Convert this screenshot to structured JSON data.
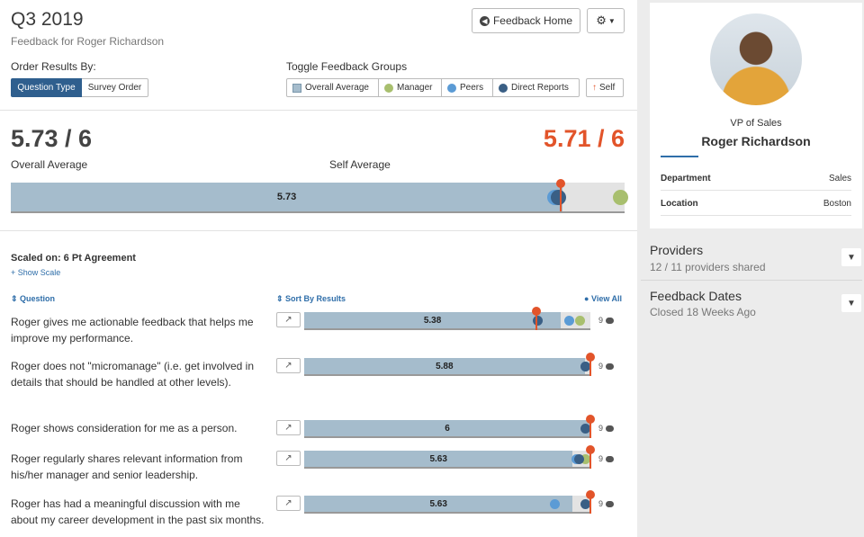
{
  "header": {
    "title": "Q3 2019",
    "subtitle": "Feedback for Roger Richardson",
    "home_label": "Feedback Home",
    "gear_icon": "gear-icon"
  },
  "order": {
    "label": "Order Results By:",
    "options": [
      "Question Type",
      "Survey Order"
    ],
    "selected": "Question Type"
  },
  "groups": {
    "label": "Toggle Feedback Groups",
    "items": [
      "Overall Average",
      "Manager",
      "Peers",
      "Direct Reports",
      "Self"
    ],
    "colors": {
      "overall": "#a5bccc",
      "manager": "#a8bf6e",
      "peers": "#5b9bd5",
      "direct": "#3a5f85",
      "self": "#e2542a"
    }
  },
  "summary": {
    "overall_score": "5.73 / 6",
    "overall_label": "Overall Average",
    "self_score": "5.71 / 6",
    "self_label": "Self Average",
    "bar_value_text": "5.73",
    "overall_value": 5.73,
    "self_value": 5.71,
    "max": 6,
    "peers_value": 5.65,
    "direct_value": 5.69,
    "manager_value": 5.93
  },
  "scale": {
    "scaled_on": "Scaled on: 6 Pt Agreement",
    "show_scale": "+ Show Scale"
  },
  "columns": {
    "question": "Question",
    "sort": "Sort By Results",
    "view_all": "View All"
  },
  "questions": [
    {
      "text": "Roger gives me actionable feedback that helps me improve my performance.",
      "value_text": "5.38",
      "value": 5.38,
      "self": 4.86,
      "direct": 4.89,
      "peers": 5.55,
      "manager": 5.78,
      "comments": "9"
    },
    {
      "text": "Roger does not \"micromanage\" (i.e. get involved in details that should be handled at other levels).",
      "value_text": "5.88",
      "value": 5.88,
      "self": 6,
      "direct": 5.97,
      "peers": 5.92,
      "comments": "9"
    },
    {
      "text": "Roger shows consideration for me as a person.",
      "value_text": "6",
      "value": 6,
      "self": 6,
      "direct": 5.97,
      "comments": "9"
    },
    {
      "text": "Roger regularly shares relevant information from his/her manager and senior leadership.",
      "value_text": "5.63",
      "value": 5.63,
      "self": 6,
      "direct": 5.77,
      "peers": 5.7,
      "manager": 5.91,
      "comments": "9"
    },
    {
      "text": "Roger has had a meaningful discussion with me about my career development in the past six months.",
      "value_text": "5.63",
      "value": 5.63,
      "self": 6,
      "direct": 5.97,
      "peers": 5.26,
      "comments": "9"
    }
  ],
  "profile": {
    "role": "VP of Sales",
    "name": "Roger Richardson",
    "department_label": "Department",
    "department": "Sales",
    "location_label": "Location",
    "location": "Boston"
  },
  "providers": {
    "title": "Providers",
    "sub": "12 / 11 providers shared"
  },
  "feedback_dates": {
    "title": "Feedback Dates",
    "sub": "Closed 18 Weeks Ago"
  }
}
